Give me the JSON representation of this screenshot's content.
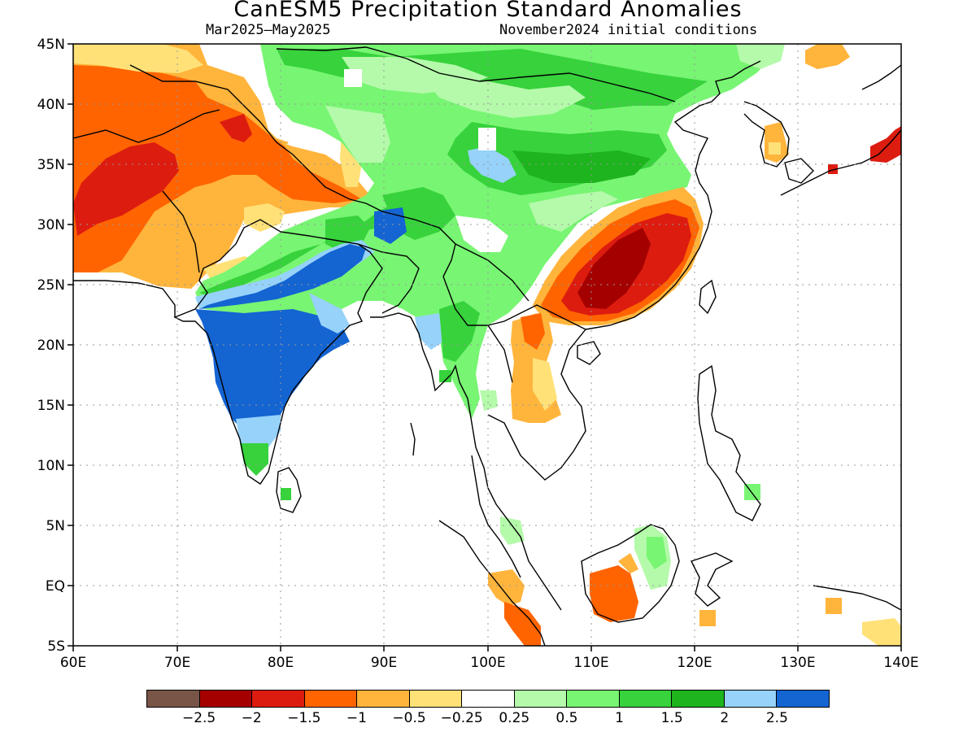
{
  "title": "CanESM5 Precipitation Standard Anomalies",
  "subtitle_left": "Mar2025–May2025",
  "subtitle_right": "November2024 initial conditions",
  "x_ticks": [
    "60E",
    "70E",
    "80E",
    "90E",
    "100E",
    "110E",
    "120E",
    "130E",
    "140E"
  ],
  "y_ticks": [
    "45N",
    "40N",
    "35N",
    "30N",
    "25N",
    "20N",
    "15N",
    "10N",
    "5N",
    "EQ",
    "5S"
  ],
  "colorbar": {
    "colors": [
      "#795548",
      "#a50000",
      "#dd1c10",
      "#ff6400",
      "#ffb43c",
      "#ffe178",
      "#ffffff",
      "#b4faaa",
      "#78f573",
      "#37d23c",
      "#1eb41e",
      "#96d2fa",
      "#1464d2"
    ],
    "labels": [
      "−2.5",
      "−2",
      "−1.5",
      "−1",
      "−0.5",
      "−0.25",
      "0.25",
      "0.5",
      "1",
      "1.5",
      "2",
      "2.5"
    ]
  }
}
